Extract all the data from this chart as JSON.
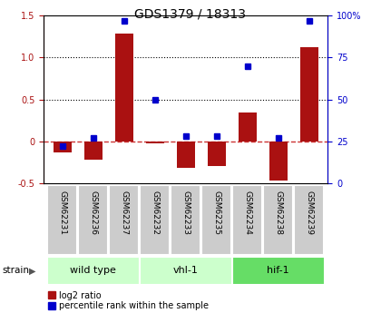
{
  "title": "GDS1379 / 18313",
  "categories": [
    "GSM62231",
    "GSM62236",
    "GSM62237",
    "GSM62232",
    "GSM62233",
    "GSM62235",
    "GSM62234",
    "GSM62238",
    "GSM62239"
  ],
  "log2_ratio": [
    -0.13,
    -0.22,
    1.29,
    -0.02,
    -0.32,
    -0.3,
    0.34,
    -0.47,
    1.12
  ],
  "percentile_rank": [
    22,
    27,
    97,
    50,
    28,
    28,
    70,
    27,
    97
  ],
  "groups": [
    {
      "label": "wild type",
      "start": 0,
      "end": 3,
      "color": "#ccffcc"
    },
    {
      "label": "vhl-1",
      "start": 3,
      "end": 6,
      "color": "#ccffcc"
    },
    {
      "label": "hif-1",
      "start": 6,
      "end": 9,
      "color": "#66dd66"
    }
  ],
  "ylim_left": [
    -0.5,
    1.5
  ],
  "ylim_right": [
    0,
    100
  ],
  "bar_color": "#aa1111",
  "dot_color": "#0000cc",
  "hline_color": "#cc3333",
  "bg_xticklabels": "#cccccc",
  "legend_items": [
    "log2 ratio",
    "percentile rank within the sample"
  ],
  "legend_colors": [
    "#aa1111",
    "#0000cc"
  ]
}
